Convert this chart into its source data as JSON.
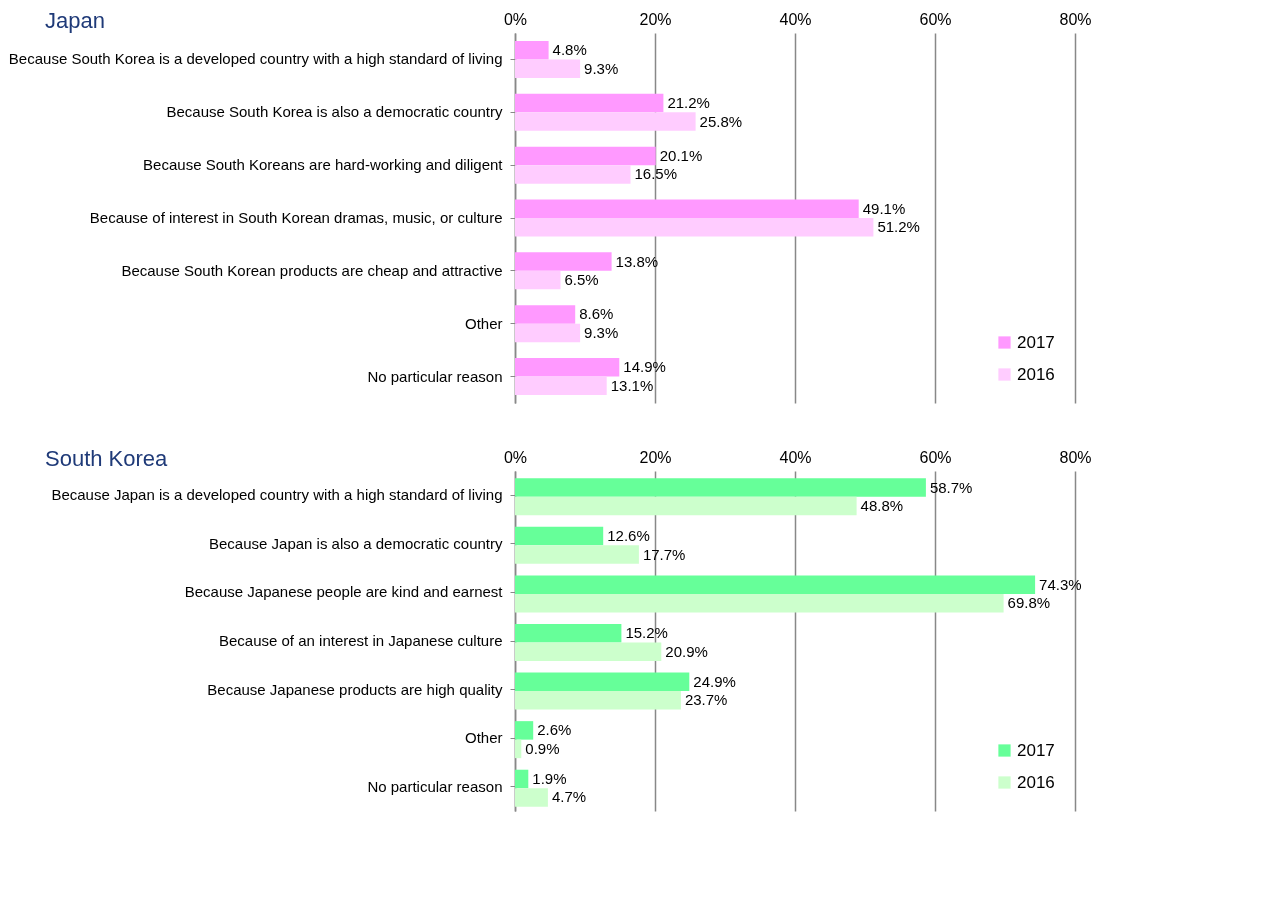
{
  "chart_data": [
    {
      "type": "bar",
      "orientation": "horizontal",
      "title": "Japan",
      "categories": [
        "Because South Korea is a developed country with a high standard of living",
        "Because South Korea is also a democratic country",
        "Because South Koreans are hard-working and diligent",
        "Because of interest in South Korean dramas, music, or culture",
        "Because South Korean products are cheap and attractive",
        "Other",
        "No particular reason"
      ],
      "series": [
        {
          "name": "2017",
          "color": "#ff99ff",
          "values": [
            4.8,
            21.2,
            20.1,
            49.1,
            13.8,
            8.6,
            14.9
          ],
          "value_labels": [
            "4.8%",
            "21.2%",
            "20.1%",
            "49.1%",
            "13.8%",
            "8.6%",
            "14.9%"
          ]
        },
        {
          "name": "2016",
          "color": "#ffccff",
          "values": [
            9.3,
            25.8,
            16.5,
            51.2,
            6.5,
            9.3,
            13.1
          ],
          "value_labels": [
            "9.3%",
            "25.8%",
            "16.5%",
            "51.2%",
            "6.5%",
            "9.3%",
            "13.1%"
          ]
        }
      ],
      "xlim": [
        0,
        80
      ],
      "xticks": [
        {
          "value": 0,
          "label": "0%"
        },
        {
          "value": 20,
          "label": "20%"
        },
        {
          "value": 40,
          "label": "40%"
        },
        {
          "value": 60,
          "label": "60%"
        },
        {
          "value": 80,
          "label": "80%"
        }
      ],
      "grid": "x",
      "legend": "bottom right"
    },
    {
      "type": "bar",
      "orientation": "horizontal",
      "title": "South Korea",
      "categories": [
        "Because Japan is a developed country with a high standard of living",
        "Because Japan is also a democratic country",
        "Because Japanese people are kind and earnest",
        "Because of an interest in Japanese culture",
        "Because Japanese products are high quality",
        "Other",
        "No particular reason"
      ],
      "series": [
        {
          "name": "2017",
          "color": "#66ff99",
          "values": [
            58.7,
            12.6,
            74.3,
            15.2,
            24.9,
            2.6,
            1.9
          ],
          "value_labels": [
            "58.7%",
            "12.6%",
            "74.3%",
            "15.2%",
            "24.9%",
            "2.6%",
            "1.9%"
          ]
        },
        {
          "name": "2016",
          "color": "#ccffcc",
          "values": [
            48.8,
            17.7,
            69.8,
            20.9,
            23.7,
            0.9,
            4.7
          ],
          "value_labels": [
            "48.8%",
            "17.7%",
            "69.8%",
            "20.9%",
            "23.7%",
            "0.9%",
            "4.7%"
          ]
        }
      ],
      "xlim": [
        0,
        80
      ],
      "xticks": [
        {
          "value": 0,
          "label": "0%"
        },
        {
          "value": 20,
          "label": "20%"
        },
        {
          "value": 40,
          "label": "40%"
        },
        {
          "value": 60,
          "label": "60%"
        },
        {
          "value": 80,
          "label": "80%"
        }
      ],
      "grid": "x",
      "legend": "bottom right"
    }
  ]
}
